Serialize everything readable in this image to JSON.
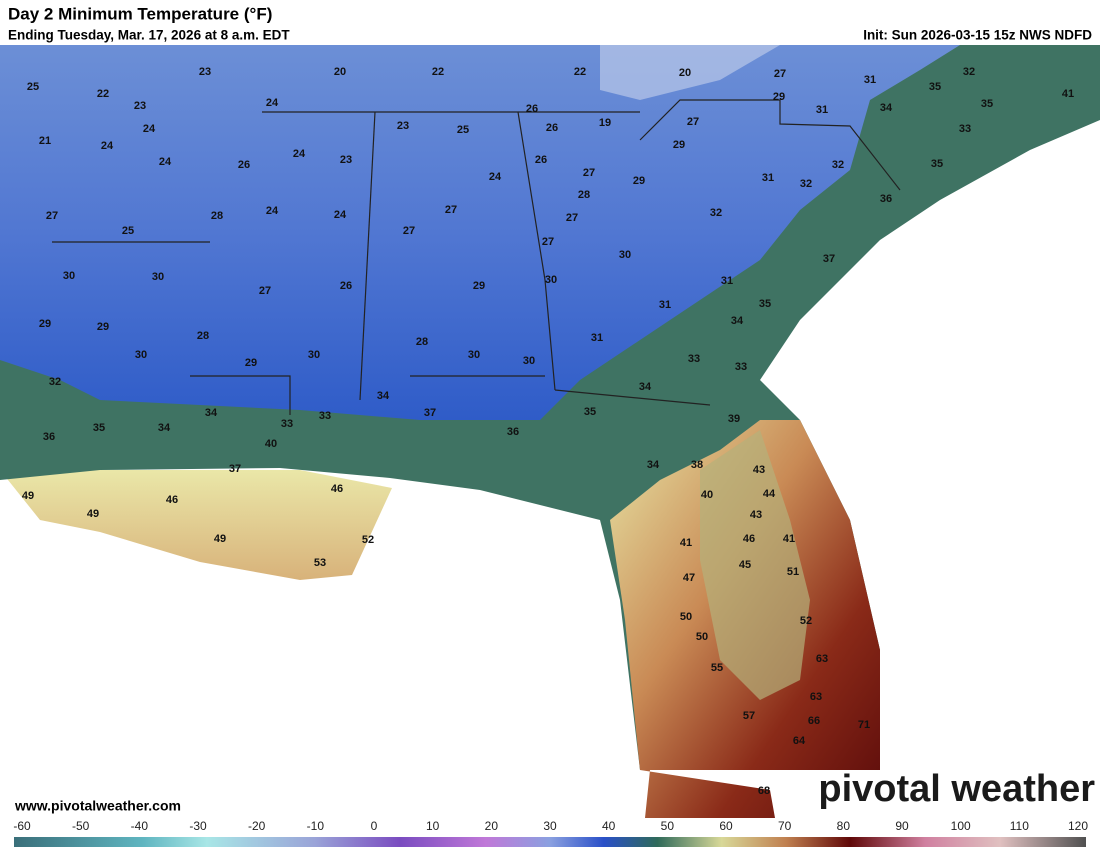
{
  "header": {
    "title": "Day 2 Minimum Temperature (°F)",
    "subtitle": "Ending Tuesday, Mar. 17, 2026 at 8 a.m. EDT",
    "init": "Init: Sun 2026-03-15 15z NWS NDFD"
  },
  "labels": [
    25,
    22,
    23,
    20,
    22,
    22,
    20,
    27,
    31,
    32,
    35,
    35,
    41,
    23,
    24,
    26,
    23,
    25,
    26,
    19,
    27,
    29,
    31,
    34,
    33,
    21,
    24,
    24,
    24,
    26,
    24,
    23,
    26,
    29,
    27,
    29,
    32,
    35,
    31,
    32,
    24,
    27,
    28,
    24,
    24,
    27,
    28,
    27,
    32,
    36,
    25,
    27,
    27,
    30,
    37,
    30,
    30,
    27,
    26,
    29,
    30,
    31,
    35,
    29,
    29,
    28,
    31,
    34,
    31,
    30,
    29,
    30,
    28,
    30,
    30,
    33,
    33,
    32,
    34,
    34,
    34,
    33,
    37,
    35,
    39,
    35,
    34,
    33,
    36,
    36,
    40,
    37,
    34,
    38,
    43,
    49,
    46,
    40,
    44,
    49,
    46,
    43,
    49,
    52,
    41,
    46,
    41,
    53,
    45,
    51,
    47,
    50,
    52,
    50,
    63,
    55,
    63,
    57,
    66,
    71,
    64,
    68
  ],
  "footer": {
    "site": "www.pivotalweather.com",
    "logo": "pivotal weather"
  },
  "colorbar": {
    "ticks": [
      -60,
      -50,
      -40,
      -30,
      -20,
      -10,
      0,
      10,
      20,
      30,
      40,
      50,
      60,
      70,
      80,
      90,
      100,
      110,
      120
    ]
  }
}
